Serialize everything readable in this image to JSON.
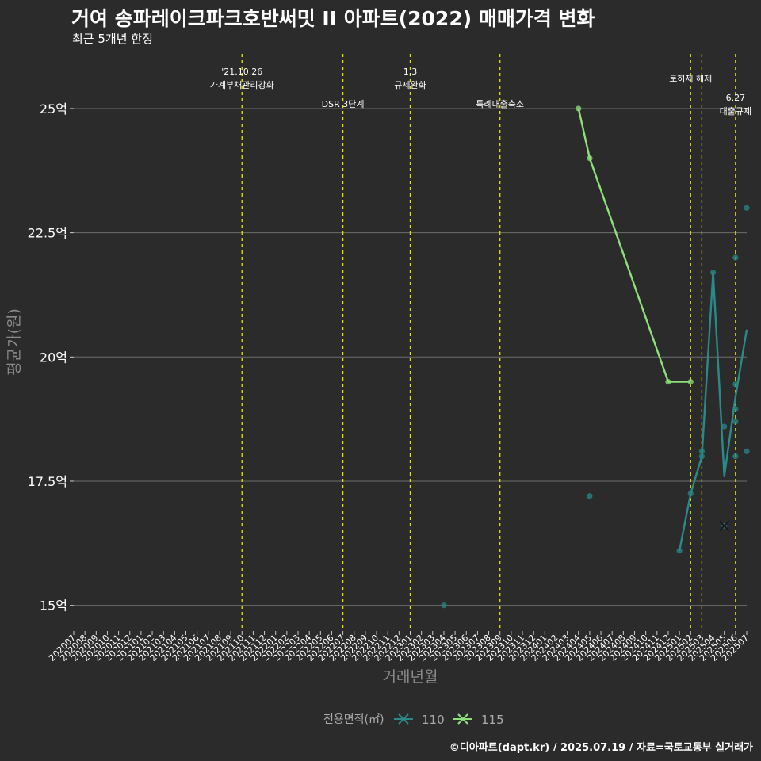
{
  "chart_data": {
    "type": "line",
    "title": "거여 송파레이크파크호반써밋 II  아파트(2022) 매매가격 변화",
    "subtitle": "최근 5개년 한정",
    "xlabel": "거래년월",
    "ylabel": "평균가(원)",
    "caption": "©디아파트(dapt.kr) / 2025.07.19 / 자료=국토교통부 실거래가",
    "ylim": [
      14.5,
      26.1
    ],
    "ytick_values": [
      15,
      17.5,
      20,
      22.5,
      25
    ],
    "ytick_labels": [
      "15억",
      "17.5억",
      "20억",
      "22.5억",
      "25억"
    ],
    "categories": [
      "202007",
      "202008",
      "202009",
      "202010",
      "202011",
      "202012",
      "202101",
      "202102",
      "202103",
      "202104",
      "202105",
      "202106",
      "202107",
      "202108",
      "202109",
      "202110",
      "202111",
      "202112",
      "202201",
      "202202",
      "202203",
      "202204",
      "202205",
      "202206",
      "202207",
      "202208",
      "202209",
      "202210",
      "202211",
      "202212",
      "202301",
      "202302",
      "202303",
      "202304",
      "202305",
      "202306",
      "202307",
      "202308",
      "202309",
      "202310",
      "202311",
      "202312",
      "202401",
      "202402",
      "202403",
      "202404",
      "202405",
      "202406",
      "202407",
      "202408",
      "202409",
      "202410",
      "202411",
      "202412",
      "202501",
      "202502",
      "202503",
      "202504",
      "202505",
      "202506",
      "202507"
    ],
    "legend_title": "전용면적(㎡)",
    "series": [
      {
        "name": "110",
        "color": "#2a8a8a",
        "line": [
          [
            "202501",
            16.1
          ],
          [
            "202502",
            17.25
          ],
          [
            "202503",
            18.0
          ],
          [
            "202504",
            21.7
          ],
          [
            "202505",
            17.6
          ],
          [
            "202506",
            19.2
          ],
          [
            "202507",
            20.55
          ]
        ],
        "points": [
          [
            "202304",
            15.0
          ],
          [
            "202405",
            17.2
          ],
          [
            "202501",
            16.1
          ],
          [
            "202502",
            17.25
          ],
          [
            "202503",
            18.0
          ],
          [
            "202503",
            18.1
          ],
          [
            "202504",
            21.7
          ],
          [
            "202505",
            18.6
          ],
          [
            "202505",
            16.6
          ],
          [
            "202506",
            18.7
          ],
          [
            "202506",
            18.95
          ],
          [
            "202506",
            19.45
          ],
          [
            "202506",
            18.0
          ],
          [
            "202506",
            22.0
          ],
          [
            "202507",
            18.1
          ],
          [
            "202507",
            23.0
          ]
        ]
      },
      {
        "name": "115",
        "color": "#8ee07a",
        "line": [
          [
            "202404",
            25.0
          ],
          [
            "202405",
            24.0
          ],
          [
            "202412",
            19.5
          ],
          [
            "202502",
            19.5
          ]
        ],
        "points": [
          [
            "202404",
            25.0
          ],
          [
            "202405",
            24.0
          ],
          [
            "202412",
            19.5
          ],
          [
            "202502",
            19.5
          ]
        ]
      }
    ],
    "cross_marker": {
      "x": "202505",
      "y": 16.6
    },
    "events": [
      {
        "x": "202110",
        "lines": [
          "'21.10.26",
          "가계부채관리강화"
        ]
      },
      {
        "x": "202207",
        "lines": [
          "DSR 3단계"
        ]
      },
      {
        "x": "202301",
        "lines": [
          "1.3",
          "규제완화"
        ]
      },
      {
        "x": "202309",
        "lines": [
          "특례대출축소"
        ]
      },
      {
        "x": "202502",
        "lines": [
          "토허제 해제"
        ]
      },
      {
        "x": "202503",
        "lines": []
      },
      {
        "x": "202506",
        "lines": [
          "6.27",
          "대출규제"
        ]
      }
    ]
  }
}
